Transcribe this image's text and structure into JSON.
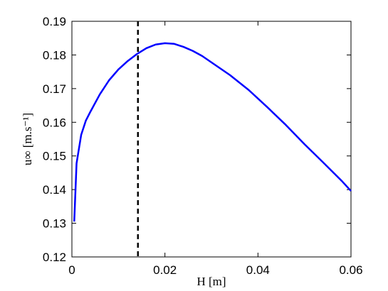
{
  "chart_data": {
    "type": "line",
    "xlabel": "H   [m]",
    "ylabel": "u∞  [m.s⁻¹]",
    "x": [
      0.0005,
      0.001,
      0.002,
      0.003,
      0.004,
      0.006,
      0.008,
      0.01,
      0.012,
      0.014,
      0.016,
      0.018,
      0.02,
      0.022,
      0.024,
      0.026,
      0.028,
      0.03,
      0.034,
      0.038,
      0.042,
      0.046,
      0.05,
      0.054,
      0.058,
      0.06
    ],
    "series": [
      {
        "color": "#0000ff",
        "values": [
          0.1305,
          0.1478,
          0.1563,
          0.1605,
          0.1632,
          0.1683,
          0.1725,
          0.1757,
          0.1782,
          0.1803,
          0.182,
          0.1831,
          0.1835,
          0.1833,
          0.1824,
          0.1812,
          0.1797,
          0.1778,
          0.174,
          0.1696,
          0.1645,
          0.1592,
          0.1535,
          0.1481,
          0.1426,
          0.1396
        ]
      }
    ],
    "vline": {
      "x": 0.0142,
      "color": "#000000"
    },
    "xlim": [
      0,
      0.06
    ],
    "xticks": [
      0,
      0.02,
      0.04,
      0.06
    ],
    "ylim": [
      0.12,
      0.19
    ],
    "yticks": [
      0.12,
      0.13,
      0.14,
      0.15,
      0.16,
      0.17,
      0.18,
      0.19
    ],
    "grid": false
  }
}
